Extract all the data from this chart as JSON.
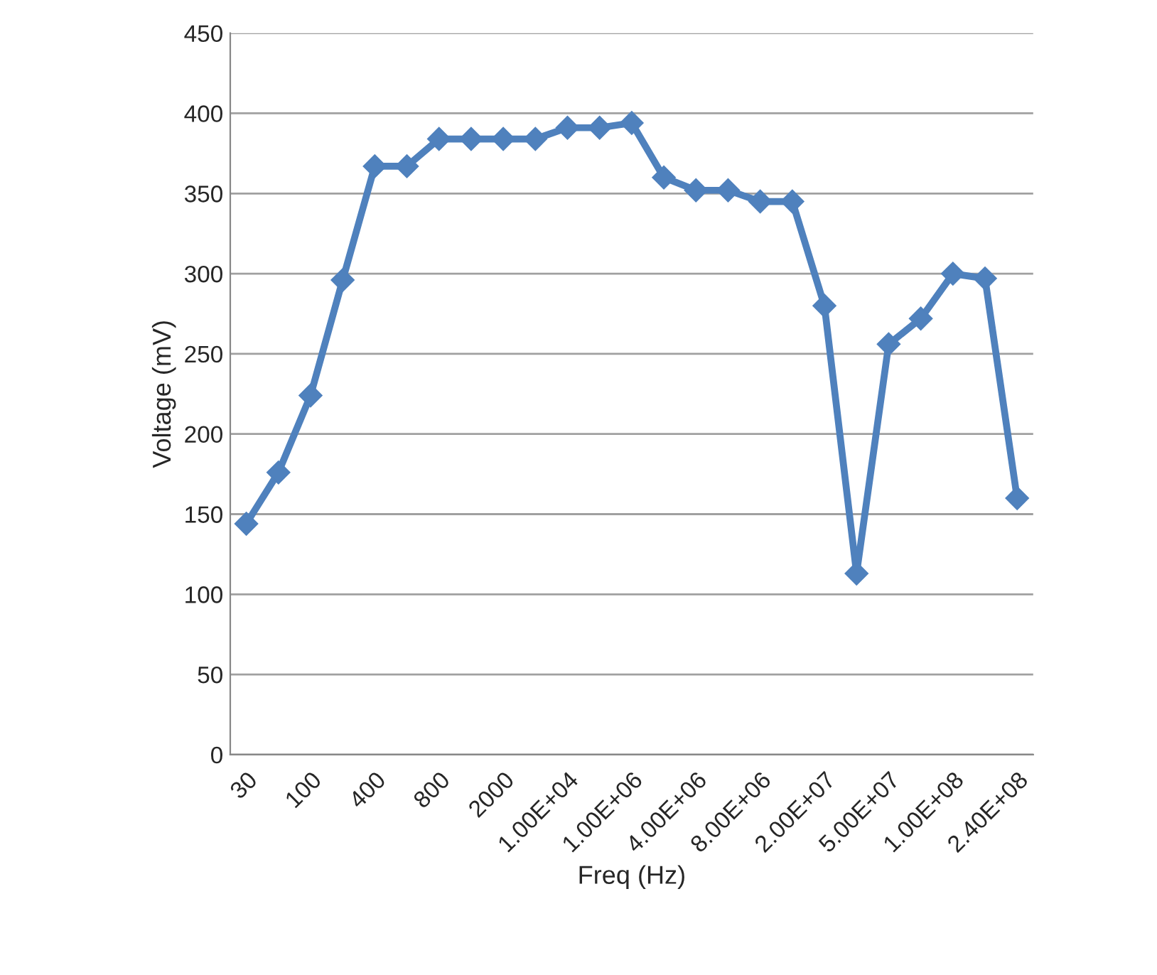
{
  "chart_data": {
    "type": "line",
    "xlabel": "Freq (Hz)",
    "ylabel": "Voltage (mV)",
    "categories": [
      "30",
      null,
      "100",
      null,
      "400",
      null,
      "800",
      null,
      "2000",
      null,
      "1.00E+04",
      null,
      "1.00E+06",
      null,
      "4.00E+06",
      null,
      "8.00E+06",
      null,
      "2.00E+07",
      null,
      "5.00E+07",
      null,
      "1.00E+08",
      null,
      "2.40E+08"
    ],
    "series": [
      {
        "color": "#4f81bd",
        "values": [
          144,
          176,
          224,
          296,
          367,
          367,
          384,
          384,
          384,
          384,
          391,
          391,
          394,
          360,
          352,
          352,
          345,
          345,
          280,
          113,
          256,
          272,
          300,
          297,
          160
        ]
      }
    ],
    "ylim": [
      0,
      450
    ],
    "yticks": [
      0,
      50,
      100,
      150,
      200,
      250,
      300,
      350,
      400,
      450
    ],
    "grid": "y",
    "marker": "diamond",
    "line_style": "solid"
  }
}
